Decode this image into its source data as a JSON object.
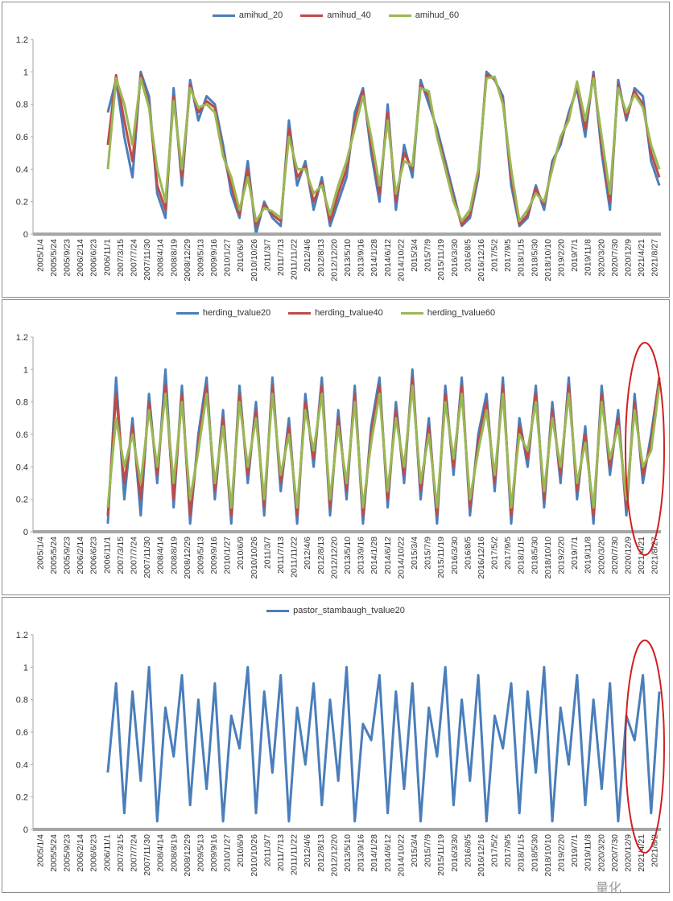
{
  "colors": {
    "blue": "#4a7ebb",
    "red": "#be4b48",
    "green": "#98b954",
    "axis": "#a6a6a6",
    "grid": "#bfbfbf",
    "annotation": "#d02020"
  },
  "chart_data": [
    {
      "type": "line",
      "ylim": [
        0,
        1.2
      ],
      "yticks": [
        "0",
        "0.2",
        "0.4",
        "0.6",
        "0.8",
        "1",
        "1.2"
      ],
      "x_tick_labels": [
        "2005/1/4",
        "2005/5/24",
        "2005/9/23",
        "2006/2/14",
        "2006/6/23",
        "2006/11/1",
        "2007/3/15",
        "2007/7/24",
        "2007/11/30",
        "2008/4/14",
        "2008/8/19",
        "2008/12/29",
        "2009/5/13",
        "2009/9/16",
        "2010/1/27",
        "2010/6/9",
        "2010/10/26",
        "2011/3/7",
        "2011/7/13",
        "2011/11/22",
        "2012/4/6",
        "2012/8/13",
        "2012/12/20",
        "2013/5/10",
        "2013/9/16",
        "2014/1/28",
        "2014/6/12",
        "2014/10/22",
        "2015/3/4",
        "2015/7/9",
        "2015/11/19",
        "2016/3/30",
        "2016/8/5",
        "2016/12/16",
        "2017/5/2",
        "2017/9/5",
        "2018/1/15",
        "2018/5/30",
        "2018/10/10",
        "2019/2/20",
        "2019/7/1",
        "2019/11/8",
        "2020/3/20",
        "2020/7/30",
        "2020/12/9",
        "2021/4/21",
        "2021/8/27"
      ],
      "series": [
        {
          "name": "amihud_20",
          "color": "blue",
          "values": [
            0.75,
            0.95,
            0.6,
            0.35,
            1.0,
            0.85,
            0.25,
            0.1,
            0.9,
            0.3,
            0.95,
            0.7,
            0.85,
            0.8,
            0.55,
            0.25,
            0.1,
            0.45,
            0.0,
            0.2,
            0.1,
            0.05,
            0.7,
            0.3,
            0.45,
            0.15,
            0.35,
            0.05,
            0.2,
            0.35,
            0.75,
            0.9,
            0.5,
            0.2,
            0.8,
            0.15,
            0.55,
            0.35,
            0.95,
            0.8,
            0.65,
            0.45,
            0.25,
            0.05,
            0.1,
            0.35,
            1.0,
            0.95,
            0.85,
            0.3,
            0.05,
            0.1,
            0.3,
            0.15,
            0.45,
            0.55,
            0.75,
            0.9,
            0.6,
            1.0,
            0.5,
            0.15,
            0.95,
            0.7,
            0.9,
            0.85,
            0.45,
            0.3
          ]
        },
        {
          "name": "amihud_40",
          "color": "red",
          "values": [
            0.55,
            0.98,
            0.7,
            0.45,
            0.98,
            0.8,
            0.3,
            0.15,
            0.85,
            0.35,
            0.92,
            0.75,
            0.82,
            0.78,
            0.5,
            0.3,
            0.12,
            0.4,
            0.05,
            0.18,
            0.12,
            0.08,
            0.65,
            0.35,
            0.42,
            0.2,
            0.32,
            0.08,
            0.25,
            0.4,
            0.7,
            0.88,
            0.55,
            0.25,
            0.75,
            0.2,
            0.5,
            0.4,
            0.92,
            0.85,
            0.62,
            0.42,
            0.22,
            0.06,
            0.12,
            0.38,
            0.98,
            0.96,
            0.82,
            0.35,
            0.06,
            0.12,
            0.28,
            0.18,
            0.42,
            0.58,
            0.72,
            0.92,
            0.65,
            0.98,
            0.55,
            0.2,
            0.92,
            0.72,
            0.88,
            0.8,
            0.5,
            0.35
          ]
        },
        {
          "name": "amihud_60",
          "color": "green",
          "values": [
            0.4,
            0.96,
            0.8,
            0.55,
            0.96,
            0.78,
            0.4,
            0.2,
            0.82,
            0.4,
            0.9,
            0.78,
            0.8,
            0.75,
            0.48,
            0.35,
            0.15,
            0.35,
            0.08,
            0.16,
            0.14,
            0.1,
            0.6,
            0.4,
            0.4,
            0.25,
            0.3,
            0.12,
            0.3,
            0.45,
            0.65,
            0.85,
            0.6,
            0.3,
            0.7,
            0.25,
            0.45,
            0.42,
            0.9,
            0.88,
            0.6,
            0.4,
            0.2,
            0.08,
            0.15,
            0.4,
            0.96,
            0.97,
            0.8,
            0.4,
            0.08,
            0.15,
            0.25,
            0.2,
            0.4,
            0.6,
            0.7,
            0.94,
            0.7,
            0.96,
            0.6,
            0.25,
            0.9,
            0.75,
            0.86,
            0.78,
            0.55,
            0.4
          ]
        }
      ]
    },
    {
      "type": "line",
      "ylim": [
        0,
        1.2
      ],
      "yticks": [
        "0",
        "0.2",
        "0.4",
        "0.6",
        "0.8",
        "1",
        "1.2"
      ],
      "x_tick_labels": [
        "2005/1/4",
        "2005/5/24",
        "2005/9/23",
        "2006/2/14",
        "2006/6/23",
        "2006/11/1",
        "2007/3/15",
        "2007/7/24",
        "2007/11/30",
        "2008/4/14",
        "2008/8/19",
        "2008/12/29",
        "2009/5/13",
        "2009/9/16",
        "2010/1/27",
        "2010/6/9",
        "2010/10/26",
        "2011/3/7",
        "2011/7/13",
        "2011/11/22",
        "2012/4/6",
        "2012/8/13",
        "2012/12/20",
        "2013/5/10",
        "2013/9/16",
        "2014/1/28",
        "2014/6/12",
        "2014/10/22",
        "2015/3/4",
        "2015/7/9",
        "2015/11/19",
        "2016/3/30",
        "2016/8/5",
        "2016/12/16",
        "2017/5/2",
        "2017/9/5",
        "2018/1/15",
        "2018/5/30",
        "2018/10/10",
        "2019/2/20",
        "2019/7/1",
        "2019/11/8",
        "2020/3/20",
        "2020/7/30",
        "2020/12/9",
        "2021/4/21",
        "2021/8/27"
      ],
      "series": [
        {
          "name": "herding_tvalue20",
          "color": "blue",
          "values": [
            0.05,
            0.95,
            0.2,
            0.7,
            0.1,
            0.85,
            0.3,
            1.0,
            0.15,
            0.9,
            0.05,
            0.6,
            0.95,
            0.2,
            0.75,
            0.05,
            0.9,
            0.3,
            0.8,
            0.1,
            0.95,
            0.25,
            0.7,
            0.05,
            0.85,
            0.4,
            0.95,
            0.1,
            0.75,
            0.2,
            0.9,
            0.05,
            0.65,
            0.95,
            0.15,
            0.8,
            0.3,
            1.0,
            0.2,
            0.7,
            0.05,
            0.9,
            0.35,
            0.95,
            0.1,
            0.6,
            0.85,
            0.25,
            0.95,
            0.05,
            0.7,
            0.4,
            0.9,
            0.15,
            0.8,
            0.3,
            0.95,
            0.2,
            0.65,
            0.05,
            0.9,
            0.35,
            0.75,
            0.1,
            0.85,
            0.3,
            0.6,
            0.95
          ]
        },
        {
          "name": "herding_tvalue40",
          "color": "red",
          "values": [
            0.1,
            0.85,
            0.3,
            0.65,
            0.2,
            0.8,
            0.35,
            0.9,
            0.2,
            0.85,
            0.1,
            0.55,
            0.9,
            0.25,
            0.7,
            0.1,
            0.85,
            0.35,
            0.75,
            0.15,
            0.9,
            0.3,
            0.65,
            0.1,
            0.8,
            0.45,
            0.9,
            0.15,
            0.7,
            0.25,
            0.85,
            0.1,
            0.6,
            0.9,
            0.2,
            0.75,
            0.35,
            0.95,
            0.25,
            0.65,
            0.1,
            0.85,
            0.4,
            0.9,
            0.15,
            0.55,
            0.8,
            0.3,
            0.9,
            0.1,
            0.65,
            0.45,
            0.85,
            0.2,
            0.75,
            0.35,
            0.9,
            0.25,
            0.6,
            0.1,
            0.85,
            0.4,
            0.7,
            0.15,
            0.8,
            0.35,
            0.55,
            0.95
          ]
        },
        {
          "name": "herding_tvalue60",
          "color": "green",
          "values": [
            0.15,
            0.7,
            0.4,
            0.6,
            0.3,
            0.75,
            0.4,
            0.85,
            0.3,
            0.8,
            0.2,
            0.5,
            0.85,
            0.3,
            0.65,
            0.15,
            0.8,
            0.4,
            0.7,
            0.2,
            0.85,
            0.35,
            0.6,
            0.15,
            0.75,
            0.5,
            0.85,
            0.2,
            0.65,
            0.3,
            0.8,
            0.15,
            0.55,
            0.85,
            0.25,
            0.7,
            0.4,
            0.9,
            0.3,
            0.6,
            0.15,
            0.8,
            0.45,
            0.85,
            0.2,
            0.5,
            0.75,
            0.35,
            0.85,
            0.15,
            0.6,
            0.5,
            0.8,
            0.25,
            0.7,
            0.4,
            0.85,
            0.3,
            0.55,
            0.15,
            0.8,
            0.45,
            0.65,
            0.2,
            0.75,
            0.4,
            0.5,
            0.9
          ]
        }
      ],
      "annotation": "red-ellipse"
    },
    {
      "type": "line",
      "ylim": [
        0,
        1.2
      ],
      "yticks": [
        "0",
        "0.2",
        "0.4",
        "0.6",
        "0.8",
        "1",
        "1.2"
      ],
      "x_tick_labels": [
        "2005/1/4",
        "2005/5/24",
        "2005/9/23",
        "2006/2/14",
        "2006/6/23",
        "2006/11/1",
        "2007/3/15",
        "2007/7/24",
        "2007/11/30",
        "2008/4/14",
        "2008/8/19",
        "2008/12/29",
        "2009/5/13",
        "2009/9/16",
        "2010/1/27",
        "2010/6/9",
        "2010/10/26",
        "2011/3/7",
        "2011/7/13",
        "2011/11/22",
        "2012/4/6",
        "2012/8/13",
        "2012/12/20",
        "2013/5/10",
        "2013/9/16",
        "2014/1/28",
        "2014/6/12",
        "2014/10/22",
        "2015/3/4",
        "2015/7/9",
        "2015/11/19",
        "2016/3/30",
        "2016/8/5",
        "2016/12/16",
        "2017/5/2",
        "2017/9/5",
        "2018/1/15",
        "2018/5/30",
        "2018/10/10",
        "2019/2/20",
        "2019/7/1",
        "2019/11/8",
        "2020/3/20",
        "2020/7/30",
        "2020/12/9",
        "2021/4/21",
        "2021/8/2"
      ],
      "series": [
        {
          "name": "pastor_stambaugh_tvalue20",
          "color": "blue",
          "values": [
            0.35,
            0.9,
            0.1,
            0.85,
            0.3,
            1.0,
            0.05,
            0.75,
            0.45,
            0.95,
            0.15,
            0.8,
            0.25,
            0.9,
            0.05,
            0.7,
            0.5,
            1.0,
            0.1,
            0.85,
            0.35,
            0.95,
            0.05,
            0.75,
            0.4,
            0.9,
            0.15,
            0.8,
            0.3,
            1.0,
            0.05,
            0.65,
            0.55,
            0.95,
            0.1,
            0.85,
            0.25,
            0.9,
            0.05,
            0.75,
            0.45,
            1.0,
            0.15,
            0.8,
            0.3,
            0.95,
            0.05,
            0.7,
            0.5,
            0.9,
            0.1,
            0.85,
            0.35,
            1.0,
            0.05,
            0.75,
            0.4,
            0.95,
            0.15,
            0.8,
            0.25,
            0.9,
            0.05,
            0.7,
            0.55,
            0.95,
            0.1,
            0.85
          ]
        }
      ],
      "annotation": "red-ellipse"
    }
  ],
  "watermark_text": "量化"
}
